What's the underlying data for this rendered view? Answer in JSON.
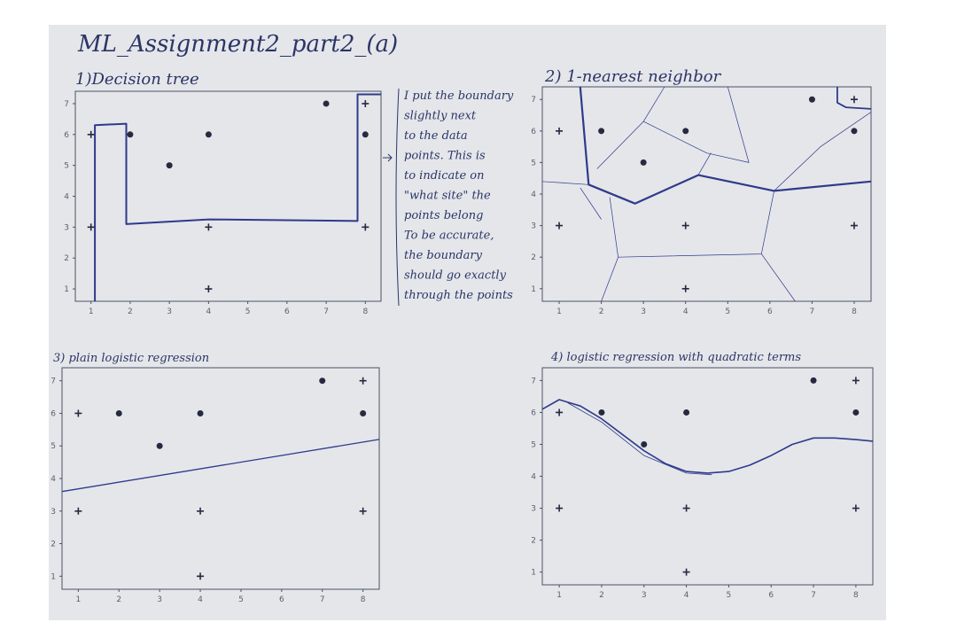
{
  "header": {
    "title": "ML_Assignment2_part2_(a)"
  },
  "panels": [
    {
      "title": "1)Decision tree"
    },
    {
      "title": "2) 1-nearest neighbor"
    },
    {
      "title": "3) plain logistic regression"
    },
    {
      "title": "4) logistic regression with quadratic terms"
    }
  ],
  "axes": {
    "xticks": [
      1,
      2,
      3,
      4,
      5,
      6,
      7,
      8
    ],
    "yticks": [
      1,
      2,
      3,
      4,
      5,
      6,
      7
    ]
  },
  "points": {
    "cross": [
      [
        1,
        6
      ],
      [
        1,
        3
      ],
      [
        4,
        3
      ],
      [
        4,
        1
      ],
      [
        8,
        7
      ],
      [
        8,
        3
      ]
    ],
    "dot": [
      [
        2,
        6
      ],
      [
        3,
        5
      ],
      [
        4,
        6
      ],
      [
        7,
        7
      ],
      [
        8,
        6
      ]
    ]
  },
  "note": {
    "lines": [
      "I put the boundary",
      "slightly next",
      "to the data",
      "points. This is",
      "to indicate on",
      "\"what site\" the",
      "points belong",
      "To be accurate,",
      "the boundary",
      "should go exactly",
      "through the points"
    ]
  }
}
